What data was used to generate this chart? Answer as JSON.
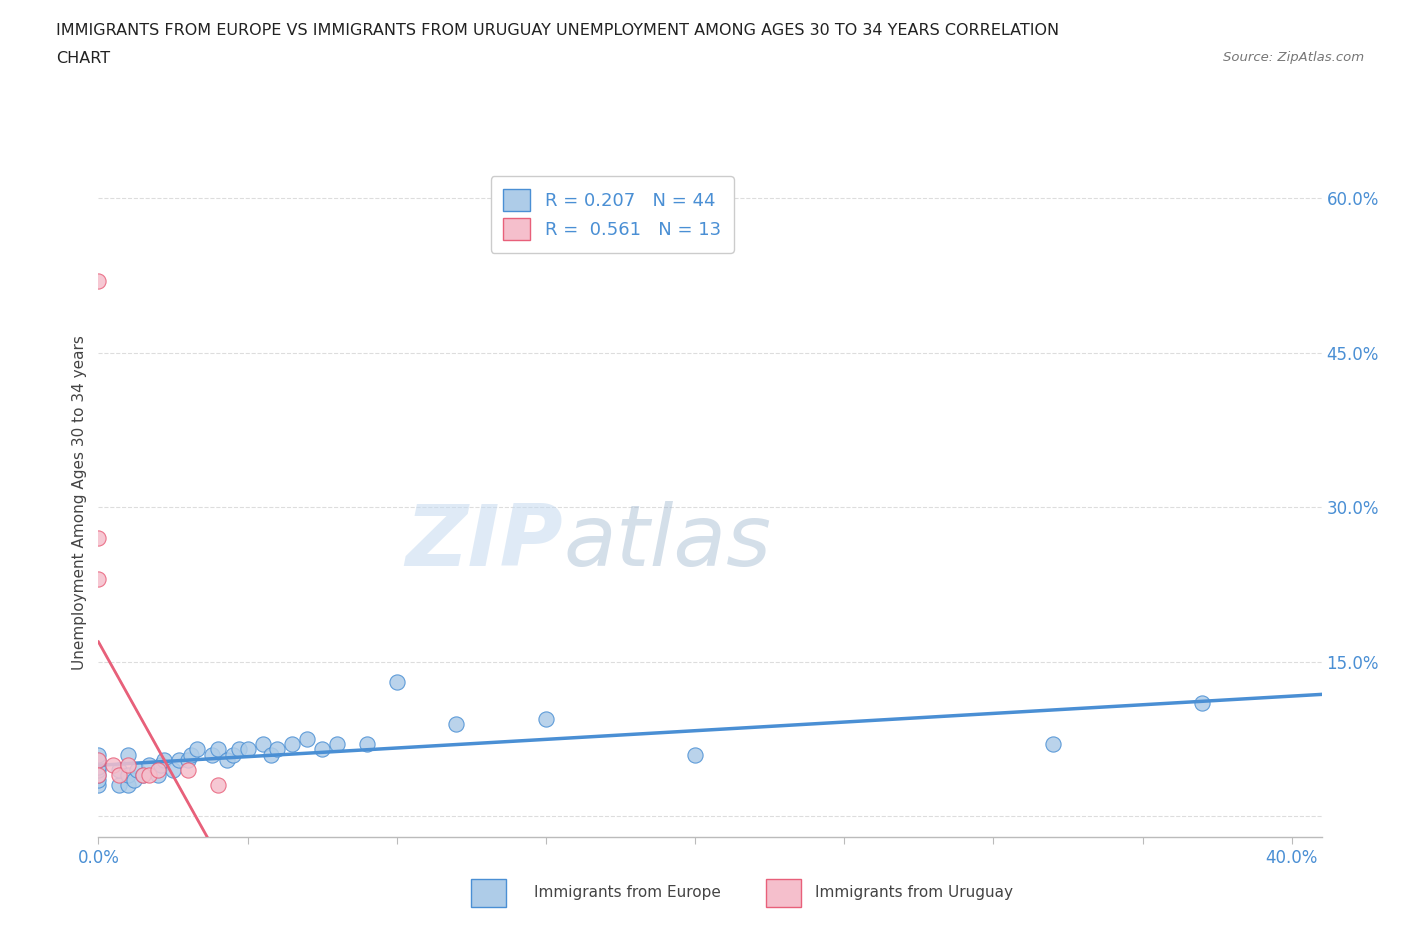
{
  "title_line1": "IMMIGRANTS FROM EUROPE VS IMMIGRANTS FROM URUGUAY UNEMPLOYMENT AMONG AGES 30 TO 34 YEARS CORRELATION",
  "title_line2": "CHART",
  "source": "Source: ZipAtlas.com",
  "ylabel_label": "Unemployment Among Ages 30 to 34 years",
  "xlim": [
    0.0,
    0.41
  ],
  "ylim": [
    -0.02,
    0.63
  ],
  "europe_R": 0.207,
  "europe_N": 44,
  "uruguay_R": 0.561,
  "uruguay_N": 13,
  "europe_color": "#aecce8",
  "europe_line_color": "#4a8fd4",
  "uruguay_color": "#f5bfcc",
  "uruguay_line_color": "#e8607a",
  "legend_label_europe": "Immigrants from Europe",
  "legend_label_uruguay": "Immigrants from Uruguay",
  "watermark_zip": "ZIP",
  "watermark_atlas": "atlas",
  "background_color": "#ffffff",
  "grid_color": "#dddddd",
  "europe_x": [
    0.0,
    0.0,
    0.0,
    0.0,
    0.0,
    0.0,
    0.0,
    0.007,
    0.007,
    0.01,
    0.01,
    0.01,
    0.012,
    0.013,
    0.015,
    0.017,
    0.02,
    0.021,
    0.022,
    0.025,
    0.027,
    0.03,
    0.031,
    0.033,
    0.038,
    0.04,
    0.043,
    0.045,
    0.047,
    0.05,
    0.055,
    0.058,
    0.06,
    0.065,
    0.07,
    0.075,
    0.08,
    0.09,
    0.1,
    0.12,
    0.15,
    0.2,
    0.32,
    0.37
  ],
  "europe_y": [
    0.03,
    0.035,
    0.04,
    0.045,
    0.048,
    0.055,
    0.06,
    0.03,
    0.045,
    0.03,
    0.04,
    0.06,
    0.035,
    0.045,
    0.04,
    0.05,
    0.04,
    0.05,
    0.055,
    0.045,
    0.055,
    0.055,
    0.06,
    0.065,
    0.06,
    0.065,
    0.055,
    0.06,
    0.065,
    0.065,
    0.07,
    0.06,
    0.065,
    0.07,
    0.075,
    0.065,
    0.07,
    0.07,
    0.13,
    0.09,
    0.095,
    0.06,
    0.07,
    0.11
  ],
  "uruguay_x": [
    0.0,
    0.0,
    0.0,
    0.0,
    0.0,
    0.005,
    0.007,
    0.01,
    0.015,
    0.017,
    0.02,
    0.03,
    0.04
  ],
  "uruguay_y": [
    0.52,
    0.27,
    0.23,
    0.055,
    0.04,
    0.05,
    0.04,
    0.05,
    0.04,
    0.04,
    0.045,
    0.045,
    0.03
  ],
  "yticks": [
    0.0,
    0.15,
    0.3,
    0.45,
    0.6
  ],
  "xticks": [
    0.0,
    0.05,
    0.1,
    0.15,
    0.2,
    0.25,
    0.3,
    0.35,
    0.4
  ]
}
